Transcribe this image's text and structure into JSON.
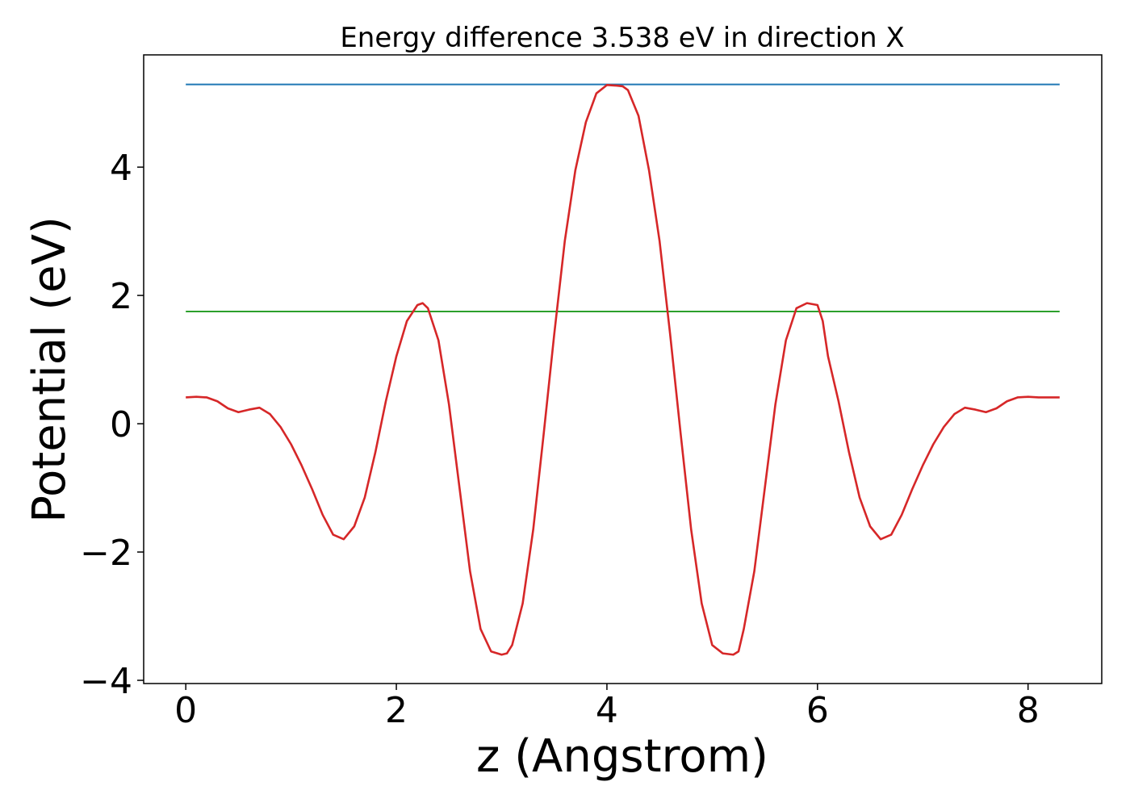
{
  "chart_data": {
    "type": "line",
    "title": "Energy difference 3.538 eV in direction X",
    "xlabel": "z (Angstrom)",
    "ylabel": "Potential (eV)",
    "xlim": [
      -0.4,
      8.7
    ],
    "ylim": [
      -4.05,
      5.75
    ],
    "x_ticks": [
      0,
      2,
      4,
      6,
      8
    ],
    "y_ticks": [
      -4,
      -2,
      0,
      2,
      4
    ],
    "x_tick_labels": [
      "0",
      "2",
      "4",
      "6",
      "8"
    ],
    "y_tick_labels": [
      "−4",
      "−2",
      "0",
      "2",
      "4"
    ],
    "grid": false,
    "legend": "none",
    "series": [
      {
        "color": "#1f77b4",
        "x": [
          0,
          8.3
        ],
        "y": [
          5.29,
          5.29
        ]
      },
      {
        "color": "#2ca02c",
        "x": [
          0,
          8.3
        ],
        "y": [
          1.75,
          1.75
        ]
      },
      {
        "color": "#d62728",
        "x": [
          0.0,
          0.1,
          0.2,
          0.3,
          0.4,
          0.5,
          0.6,
          0.7,
          0.8,
          0.9,
          1.0,
          1.1,
          1.2,
          1.3,
          1.4,
          1.5,
          1.6,
          1.7,
          1.8,
          1.9,
          2.0,
          2.1,
          2.2,
          2.25,
          2.3,
          2.4,
          2.5,
          2.6,
          2.7,
          2.8,
          2.9,
          3.0,
          3.05,
          3.1,
          3.2,
          3.3,
          3.4,
          3.5,
          3.6,
          3.7,
          3.8,
          3.9,
          4.0,
          4.1,
          4.15,
          4.2,
          4.3,
          4.4,
          4.5,
          4.6,
          4.7,
          4.8,
          4.9,
          5.0,
          5.1,
          5.2,
          5.25,
          5.3,
          5.4,
          5.5,
          5.6,
          5.7,
          5.8,
          5.9,
          6.0,
          6.05,
          6.1,
          6.2,
          6.3,
          6.4,
          6.5,
          6.6,
          6.7,
          6.8,
          6.9,
          7.0,
          7.1,
          7.2,
          7.3,
          7.4,
          7.5,
          7.6,
          7.7,
          7.8,
          7.9,
          8.0,
          8.1,
          8.2,
          8.3
        ],
        "y": [
          0.41,
          0.42,
          0.41,
          0.35,
          0.24,
          0.18,
          0.22,
          0.25,
          0.15,
          -0.05,
          -0.32,
          -0.65,
          -1.02,
          -1.42,
          -1.73,
          -1.8,
          -1.6,
          -1.15,
          -0.45,
          0.35,
          1.05,
          1.6,
          1.85,
          1.88,
          1.8,
          1.3,
          0.3,
          -1.0,
          -2.3,
          -3.2,
          -3.55,
          -3.6,
          -3.58,
          -3.45,
          -2.8,
          -1.65,
          -0.15,
          1.4,
          2.85,
          3.95,
          4.7,
          5.15,
          5.28,
          5.27,
          5.26,
          5.2,
          4.8,
          3.95,
          2.85,
          1.4,
          -0.15,
          -1.65,
          -2.8,
          -3.45,
          -3.58,
          -3.6,
          -3.55,
          -3.2,
          -2.3,
          -1.0,
          0.3,
          1.3,
          1.8,
          1.88,
          1.85,
          1.6,
          1.05,
          0.35,
          -0.45,
          -1.15,
          -1.6,
          -1.8,
          -1.73,
          -1.42,
          -1.02,
          -0.65,
          -0.32,
          -0.05,
          0.15,
          0.25,
          0.22,
          0.18,
          0.24,
          0.35,
          0.41,
          0.42,
          0.41,
          0.41,
          0.41
        ]
      }
    ]
  }
}
